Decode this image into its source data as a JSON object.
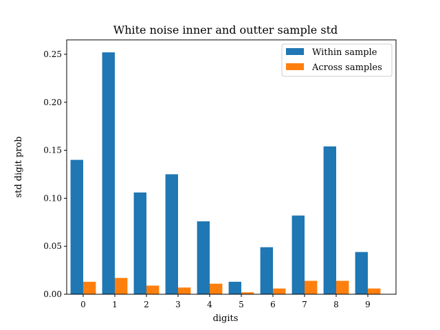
{
  "chart_data": {
    "type": "bar",
    "title": "White noise inner and outter sample std",
    "xlabel": "digits",
    "ylabel": "std digit prob",
    "categories": [
      "0",
      "1",
      "2",
      "3",
      "4",
      "5",
      "6",
      "7",
      "8",
      "9"
    ],
    "series": [
      {
        "name": "Within sample",
        "color": "#1f77b4",
        "values": [
          0.14,
          0.252,
          0.106,
          0.125,
          0.076,
          0.013,
          0.049,
          0.082,
          0.154,
          0.044
        ]
      },
      {
        "name": "Across samples",
        "color": "#ff7f0e",
        "values": [
          0.013,
          0.017,
          0.009,
          0.007,
          0.011,
          0.002,
          0.006,
          0.014,
          0.014,
          0.006
        ]
      }
    ],
    "ylim": [
      0,
      0.265
    ],
    "yticks": [
      0.0,
      0.05,
      0.1,
      0.15,
      0.2,
      0.25
    ],
    "ytick_labels": [
      "0.00",
      "0.05",
      "0.10",
      "0.15",
      "0.20",
      "0.25"
    ],
    "grid": false,
    "legend_position": "top-right"
  }
}
